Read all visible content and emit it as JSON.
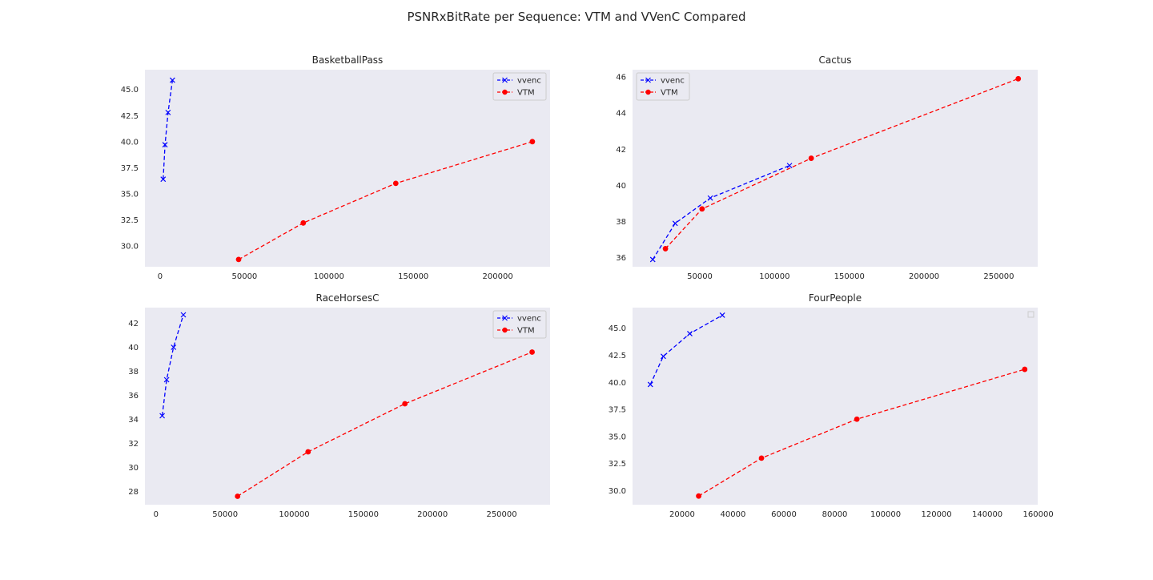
{
  "figure": {
    "title": "PSNRxBitRate per Sequence: VTM and VVenC Compared"
  },
  "colors": {
    "panel_background": "#eaeaf2",
    "vvenc": "#0000ff",
    "vtm": "#ff0000",
    "legend_border": "#cccccc"
  },
  "chart_data": [
    {
      "type": "line",
      "title": "BasketballPass",
      "xlabel": "",
      "ylabel": "",
      "xlim": [
        -9000,
        231000
      ],
      "ylim": [
        28.0,
        46.9
      ],
      "xticks": [
        0,
        50000,
        100000,
        150000,
        200000
      ],
      "xtick_labels": [
        "0",
        "50000",
        "100000",
        "150000",
        "200000"
      ],
      "yticks": [
        30.0,
        32.5,
        35.0,
        37.5,
        40.0,
        42.5,
        45.0
      ],
      "ytick_labels": [
        "30.0",
        "32.5",
        "35.0",
        "37.5",
        "40.0",
        "42.5",
        "45.0"
      ],
      "grid": false,
      "legend": {
        "show": true,
        "placement": "upper right"
      },
      "series": [
        {
          "name": "vvenc",
          "marker": "x",
          "x": [
            1800,
            2900,
            4700,
            7300
          ],
          "y": [
            36.4,
            39.7,
            42.8,
            45.9
          ]
        },
        {
          "name": "VTM",
          "marker": "o",
          "x": [
            46500,
            84800,
            139600,
            220500
          ],
          "y": [
            28.7,
            32.2,
            36.0,
            40.0
          ]
        }
      ]
    },
    {
      "type": "line",
      "title": "Cactus",
      "xlabel": "",
      "ylabel": "",
      "xlim": [
        5000,
        276000
      ],
      "ylim": [
        35.5,
        46.4
      ],
      "xticks": [
        50000,
        100000,
        150000,
        200000,
        250000
      ],
      "xtick_labels": [
        "50000",
        "100000",
        "150000",
        "200000",
        "250000"
      ],
      "yticks": [
        36,
        38,
        40,
        42,
        44,
        46
      ],
      "ytick_labels": [
        "36",
        "38",
        "40",
        "42",
        "44",
        "46"
      ],
      "grid": false,
      "legend": {
        "show": true,
        "placement": "upper left"
      },
      "series": [
        {
          "name": "vvenc",
          "marker": "x",
          "x": [
            18500,
            33500,
            57000,
            110000
          ],
          "y": [
            35.9,
            37.9,
            39.3,
            41.1
          ]
        },
        {
          "name": "VTM",
          "marker": "o",
          "x": [
            27000,
            51500,
            124500,
            263000
          ],
          "y": [
            36.5,
            38.7,
            41.5,
            45.9
          ]
        }
      ]
    },
    {
      "type": "line",
      "title": "RaceHorsesC",
      "xlabel": "",
      "ylabel": "",
      "xlim": [
        -8000,
        285000
      ],
      "ylim": [
        26.9,
        43.3
      ],
      "xticks": [
        0,
        50000,
        100000,
        150000,
        200000,
        250000
      ],
      "xtick_labels": [
        "0",
        "50000",
        "100000",
        "150000",
        "200000",
        "250000"
      ],
      "yticks": [
        28,
        30,
        32,
        34,
        36,
        38,
        40,
        42
      ],
      "ytick_labels": [
        "28",
        "30",
        "32",
        "34",
        "36",
        "38",
        "40",
        "42"
      ],
      "grid": false,
      "legend": {
        "show": true,
        "placement": "upper right"
      },
      "series": [
        {
          "name": "vvenc",
          "marker": "x",
          "x": [
            4500,
            7700,
            12700,
            19800
          ],
          "y": [
            34.3,
            37.3,
            40.0,
            42.7
          ]
        },
        {
          "name": "VTM",
          "marker": "o",
          "x": [
            59000,
            110000,
            180000,
            272000
          ],
          "y": [
            27.6,
            31.3,
            35.3,
            39.6
          ]
        }
      ]
    },
    {
      "type": "line",
      "title": "FourPeople",
      "xlabel": "",
      "ylabel": "",
      "xlim": [
        500,
        159800
      ],
      "ylim": [
        28.7,
        46.9
      ],
      "xticks": [
        20000,
        40000,
        60000,
        80000,
        100000,
        120000,
        140000,
        160000
      ],
      "xtick_labels": [
        "20000",
        "40000",
        "60000",
        "80000",
        "100000",
        "120000",
        "140000",
        "160000"
      ],
      "yticks": [
        30.0,
        32.5,
        35.0,
        37.5,
        40.0,
        42.5,
        45.0
      ],
      "ytick_labels": [
        "30.0",
        "32.5",
        "35.0",
        "37.5",
        "40.0",
        "42.5",
        "45.0"
      ],
      "grid": false,
      "legend": {
        "show": false,
        "placement": "upper right"
      },
      "series": [
        {
          "marker": "x",
          "role": "vvenc",
          "x": [
            7500,
            12600,
            23000,
            35800
          ],
          "y": [
            39.8,
            42.4,
            44.5,
            46.2
          ]
        },
        {
          "marker": "o",
          "role": "vtm",
          "x": [
            26500,
            51200,
            88700,
            154700
          ],
          "y": [
            29.5,
            33.0,
            36.6,
            41.2
          ]
        }
      ]
    }
  ]
}
